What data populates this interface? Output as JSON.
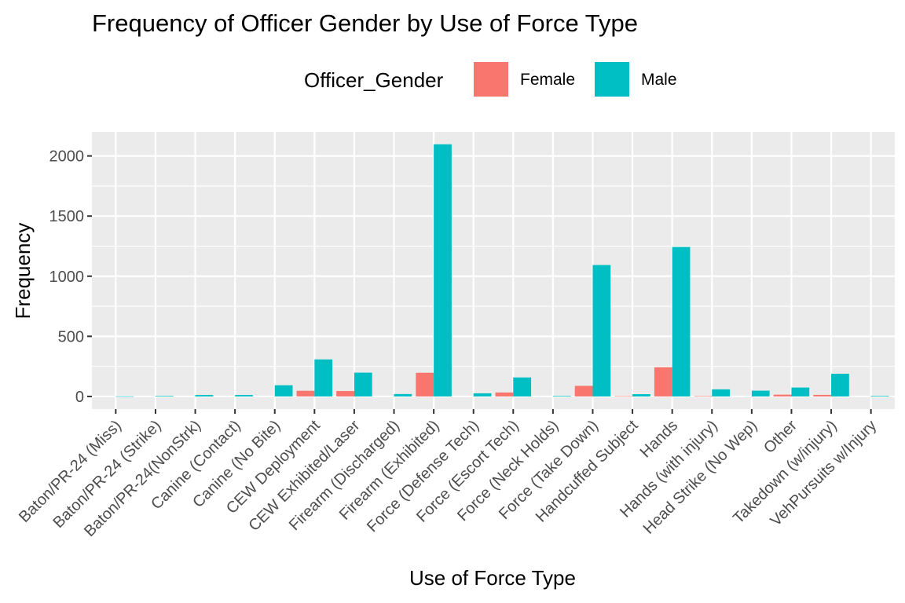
{
  "chart_data": {
    "type": "bar",
    "title": "Frequency of Officer Gender by Use of Force Type",
    "xlabel": "Use of Force Type",
    "ylabel": "Frequency",
    "legend": {
      "title": "Officer_Gender",
      "placement": "top",
      "entries": [
        "Female",
        "Male"
      ]
    },
    "categories": [
      "Baton/PR-24 (Miss)",
      "Baton/PR-24 (Strike)",
      "Baton/PR-24(NonStrk)",
      "Canine (Contact)",
      "Canine (No Bite)",
      "CEW Deployment",
      "CEW Exhibited/Laser",
      "Firearm (Discharged)",
      "Firearm (Exhibited)",
      "Force (Defense Tech)",
      "Force (Escort Tech)",
      "Force (Neck Holds)",
      "Force (Take Down)",
      "Handcuffed Subject",
      "Hands",
      "Hands (with injury)",
      "Head Strike (No Wep)",
      "Other",
      "Takedown (w/injury)",
      "VehPursuits w/Injury"
    ],
    "series": [
      {
        "name": "Female",
        "color": "#F8766D",
        "values": [
          null,
          null,
          null,
          null,
          null,
          47,
          45,
          null,
          197,
          null,
          33,
          null,
          88,
          3,
          243,
          4,
          null,
          15,
          13,
          null
        ]
      },
      {
        "name": "Male",
        "color": "#00BFC4",
        "values": [
          1,
          5,
          12,
          12,
          93,
          308,
          198,
          20,
          2097,
          26,
          158,
          5,
          1093,
          19,
          1243,
          59,
          48,
          74,
          189,
          5
        ]
      }
    ],
    "yticks": [
      0,
      500,
      1000,
      1500,
      2000
    ],
    "ylim": [
      -105,
      2200
    ],
    "grid": true,
    "panel_background": "#EBEBEB"
  }
}
